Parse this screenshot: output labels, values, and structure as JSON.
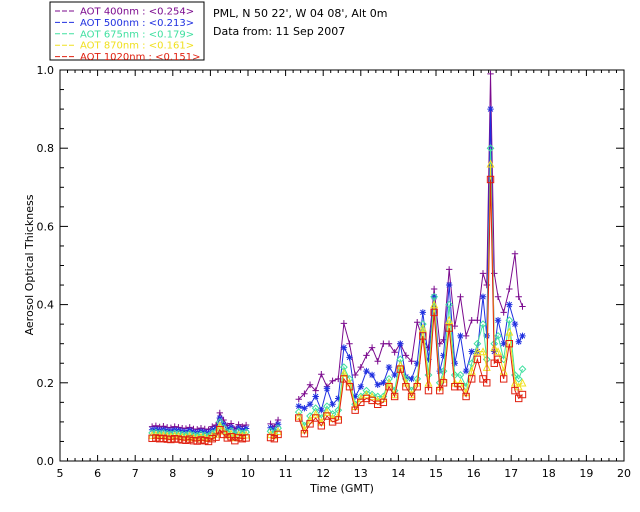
{
  "header": {
    "location": "PML, N 50 22', W 04 08', Alt 0m",
    "date": "Data from: 11 Sep 2007"
  },
  "chart_data": {
    "type": "line",
    "xlabel": "Time (GMT)",
    "ylabel": "Aerosol Optical Thickness",
    "xlim": [
      5,
      20
    ],
    "ylim": [
      0,
      1.0
    ],
    "x_ticks": [
      "5",
      "6",
      "7",
      "8",
      "9",
      "10",
      "11",
      "12",
      "13",
      "14",
      "15",
      "16",
      "17",
      "18",
      "19",
      "20"
    ],
    "y_ticks": [
      "0.0",
      "0.2",
      "0.4",
      "0.6",
      "0.8",
      "1.0"
    ],
    "grid": false,
    "legend_position": "top-left (outside plot)",
    "x": [
      7.45,
      7.55,
      7.65,
      7.75,
      7.85,
      7.95,
      8.05,
      8.15,
      8.25,
      8.35,
      8.45,
      8.55,
      8.65,
      8.75,
      8.85,
      8.95,
      9.05,
      9.15,
      9.25,
      9.35,
      9.45,
      9.55,
      9.65,
      9.75,
      9.85,
      9.95,
      10.6,
      10.7,
      10.8,
      11.35,
      11.5,
      11.65,
      11.8,
      11.95,
      12.1,
      12.25,
      12.4,
      12.55,
      12.7,
      12.85,
      13.0,
      13.15,
      13.3,
      13.45,
      13.6,
      13.75,
      13.9,
      14.05,
      14.2,
      14.35,
      14.5,
      14.65,
      14.8,
      14.95,
      15.1,
      15.2,
      15.35,
      15.5,
      15.65,
      15.8,
      15.95,
      16.1,
      16.25,
      16.35,
      16.45,
      16.55,
      16.65,
      16.8,
      16.95,
      17.1,
      17.2,
      17.3
    ],
    "series": [
      {
        "name": "AOT  400nm : <0.254>",
        "color": "#7b0a8e",
        "marker": "plus",
        "values": [
          0.088,
          0.09,
          0.087,
          0.089,
          0.086,
          0.085,
          0.088,
          0.086,
          0.084,
          0.083,
          0.086,
          0.082,
          0.081,
          0.084,
          0.082,
          0.08,
          0.088,
          0.092,
          0.123,
          0.105,
          0.09,
          0.096,
          0.082,
          0.093,
          0.088,
          0.092,
          0.095,
          0.088,
          0.105,
          0.158,
          0.172,
          0.195,
          0.18,
          0.222,
          0.19,
          0.205,
          0.21,
          0.352,
          0.3,
          0.22,
          0.24,
          0.27,
          0.29,
          0.255,
          0.3,
          0.3,
          0.278,
          0.3,
          0.27,
          0.255,
          0.355,
          0.31,
          0.29,
          0.44,
          0.3,
          0.31,
          0.49,
          0.345,
          0.42,
          0.32,
          0.36,
          0.36,
          0.48,
          0.45,
          0.99,
          0.48,
          0.42,
          0.38,
          0.44,
          0.53,
          0.42,
          0.395
        ]
      },
      {
        "name": "AOT  500nm : <0.213>",
        "color": "#2030e0",
        "marker": "star",
        "values": [
          0.08,
          0.081,
          0.079,
          0.08,
          0.078,
          0.077,
          0.079,
          0.078,
          0.076,
          0.075,
          0.078,
          0.074,
          0.073,
          0.076,
          0.074,
          0.072,
          0.079,
          0.083,
          0.11,
          0.094,
          0.081,
          0.086,
          0.074,
          0.084,
          0.079,
          0.083,
          0.085,
          0.08,
          0.094,
          0.14,
          0.135,
          0.145,
          0.165,
          0.13,
          0.185,
          0.145,
          0.16,
          0.29,
          0.265,
          0.165,
          0.19,
          0.23,
          0.22,
          0.195,
          0.2,
          0.24,
          0.22,
          0.3,
          0.215,
          0.21,
          0.25,
          0.38,
          0.26,
          0.42,
          0.23,
          0.27,
          0.45,
          0.25,
          0.32,
          0.23,
          0.28,
          0.28,
          0.42,
          0.32,
          0.9,
          0.28,
          0.36,
          0.3,
          0.4,
          0.35,
          0.305,
          0.32
        ]
      },
      {
        "name": "AOT  675nm : <0.179>",
        "color": "#40e0a0",
        "marker": "diamond",
        "values": [
          0.072,
          0.073,
          0.071,
          0.072,
          0.07,
          0.069,
          0.071,
          0.07,
          0.068,
          0.067,
          0.07,
          0.066,
          0.065,
          0.068,
          0.066,
          0.064,
          0.071,
          0.075,
          0.1,
          0.085,
          0.073,
          0.077,
          0.066,
          0.075,
          0.071,
          0.074,
          0.076,
          0.072,
          0.084,
          0.125,
          0.09,
          0.115,
          0.135,
          0.11,
          0.14,
          0.12,
          0.13,
          0.24,
          0.21,
          0.145,
          0.165,
          0.18,
          0.17,
          0.165,
          0.165,
          0.21,
          0.18,
          0.26,
          0.21,
          0.18,
          0.21,
          0.35,
          0.22,
          0.42,
          0.2,
          0.23,
          0.4,
          0.22,
          0.22,
          0.19,
          0.25,
          0.3,
          0.35,
          0.26,
          0.8,
          0.3,
          0.32,
          0.26,
          0.36,
          0.22,
          0.21,
          0.235
        ]
      },
      {
        "name": "AOT  870nm : <0.161>",
        "color": "#f0e020",
        "marker": "triangle",
        "values": [
          0.066,
          0.067,
          0.065,
          0.066,
          0.064,
          0.063,
          0.065,
          0.064,
          0.062,
          0.061,
          0.064,
          0.06,
          0.059,
          0.062,
          0.06,
          0.058,
          0.065,
          0.069,
          0.09,
          0.077,
          0.067,
          0.07,
          0.06,
          0.068,
          0.065,
          0.067,
          0.068,
          0.065,
          0.076,
          0.115,
          0.08,
          0.105,
          0.12,
          0.1,
          0.125,
          0.11,
          0.115,
          0.225,
          0.2,
          0.14,
          0.16,
          0.17,
          0.165,
          0.155,
          0.16,
          0.2,
          0.17,
          0.245,
          0.2,
          0.17,
          0.2,
          0.34,
          0.2,
          0.4,
          0.19,
          0.21,
          0.36,
          0.2,
          0.2,
          0.175,
          0.23,
          0.28,
          0.28,
          0.24,
          0.76,
          0.29,
          0.28,
          0.23,
          0.33,
          0.2,
          0.19,
          0.2
        ]
      },
      {
        "name": "AOT  1020nm : <0.151>",
        "color": "#e02010",
        "marker": "square",
        "values": [
          0.058,
          0.059,
          0.057,
          0.058,
          0.056,
          0.055,
          0.057,
          0.056,
          0.054,
          0.053,
          0.056,
          0.052,
          0.051,
          0.054,
          0.052,
          0.05,
          0.057,
          0.061,
          0.08,
          0.068,
          0.059,
          0.062,
          0.052,
          0.06,
          0.057,
          0.059,
          0.06,
          0.057,
          0.068,
          0.11,
          0.07,
          0.095,
          0.11,
          0.09,
          0.115,
          0.1,
          0.105,
          0.21,
          0.19,
          0.13,
          0.15,
          0.16,
          0.155,
          0.145,
          0.15,
          0.19,
          0.165,
          0.235,
          0.19,
          0.165,
          0.19,
          0.32,
          0.18,
          0.38,
          0.18,
          0.2,
          0.34,
          0.19,
          0.19,
          0.165,
          0.21,
          0.26,
          0.21,
          0.2,
          0.72,
          0.25,
          0.26,
          0.21,
          0.3,
          0.18,
          0.16,
          0.17
        ]
      }
    ]
  }
}
